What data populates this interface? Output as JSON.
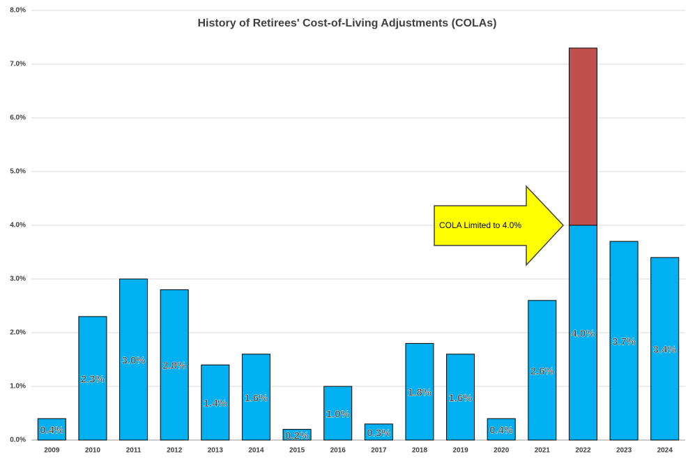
{
  "chart_data": {
    "type": "bar",
    "stacked": true,
    "title": "History of Retirees' Cost-of-Living Adjustments (COLAs)",
    "categories": [
      "2009",
      "2010",
      "2011",
      "2012",
      "2013",
      "2014",
      "2015",
      "2016",
      "2017",
      "2018",
      "2019",
      "2020",
      "2021",
      "2022",
      "2023",
      "2024"
    ],
    "series": [
      {
        "color": "#00b0f0",
        "values": [
          0.4,
          2.3,
          3.0,
          2.8,
          1.4,
          1.6,
          0.2,
          1.0,
          0.3,
          1.8,
          1.6,
          0.4,
          2.6,
          4.0,
          3.7,
          3.4
        ],
        "value_labels": [
          "0.4%",
          "2.3%",
          "3.0%",
          "2.8%",
          "1.4%",
          "1.6%",
          "0.2%",
          "1.0%",
          "0.3%",
          "1.8%",
          "1.6%",
          "0.4%",
          "2.6%",
          "4.0%",
          "3.7%",
          "3.4%"
        ]
      },
      {
        "color": "#c0504d",
        "values": [
          null,
          null,
          null,
          null,
          null,
          null,
          null,
          null,
          null,
          null,
          null,
          null,
          null,
          3.3,
          null,
          null
        ]
      }
    ],
    "ylim": [
      0,
      8
    ],
    "yticks": [
      {
        "value": 0,
        "label": "0.0%"
      },
      {
        "value": 1,
        "label": "1.0%"
      },
      {
        "value": 2,
        "label": "2.0%"
      },
      {
        "value": 3,
        "label": "3.0%"
      },
      {
        "value": 4,
        "label": "4.0%"
      },
      {
        "value": 5,
        "label": "5.0%"
      },
      {
        "value": 6,
        "label": "6.0%"
      },
      {
        "value": 7,
        "label": "7.0%"
      },
      {
        "value": 8,
        "label": "8.0%"
      }
    ],
    "grid": true,
    "annotation": "COLA Limited to 4.0%"
  }
}
